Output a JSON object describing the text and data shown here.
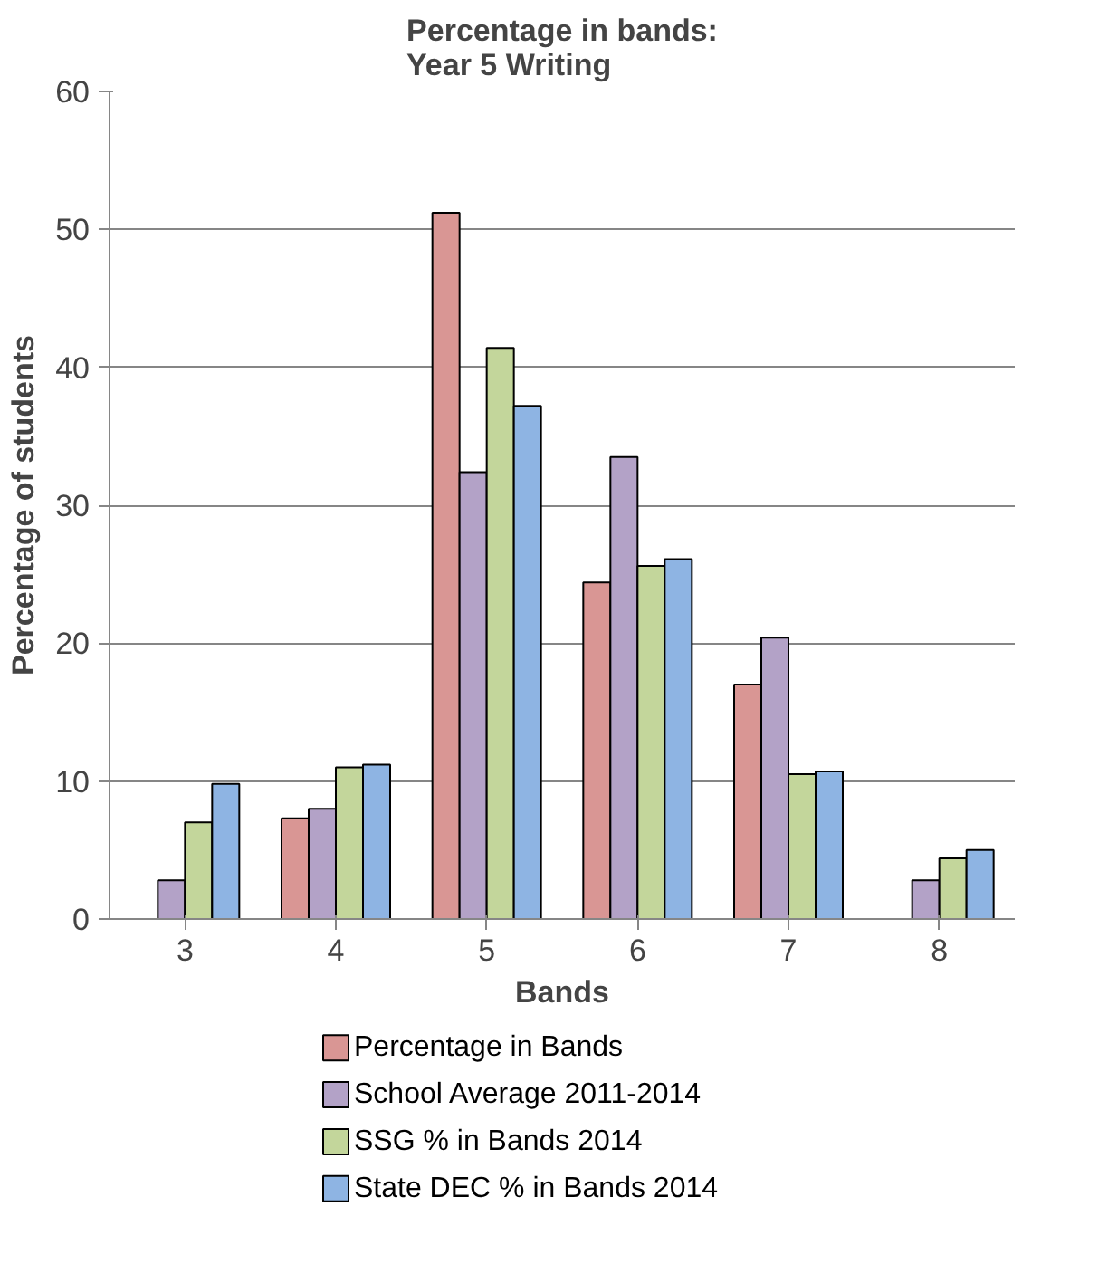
{
  "chart_data": {
    "type": "bar",
    "title": "Percentage in bands:\nYear 5 Writing",
    "xlabel": "Bands",
    "ylabel": "Percentage of students",
    "categories": [
      "3",
      "4",
      "5",
      "6",
      "7",
      "8"
    ],
    "series": [
      {
        "name": "Percentage in Bands",
        "color": "#d99694",
        "values": [
          null,
          7.3,
          51.2,
          24.4,
          17.0,
          null
        ]
      },
      {
        "name": "School Average 2011-2014",
        "color": "#b3a2c7",
        "values": [
          2.8,
          8.0,
          32.4,
          33.5,
          20.4,
          2.8
        ]
      },
      {
        "name": "SSG % in Bands 2014",
        "color": "#c3d69b",
        "values": [
          7.0,
          11.0,
          41.4,
          25.6,
          10.5,
          4.4
        ]
      },
      {
        "name": "State DEC % in Bands 2014",
        "color": "#8eb4e3",
        "values": [
          9.8,
          11.2,
          37.2,
          26.1,
          10.7,
          5.0
        ]
      }
    ],
    "ylim": [
      0,
      60
    ],
    "yticks": [
      0,
      10,
      20,
      30,
      40,
      50,
      60
    ],
    "grid": "y",
    "legend": "bottom"
  }
}
